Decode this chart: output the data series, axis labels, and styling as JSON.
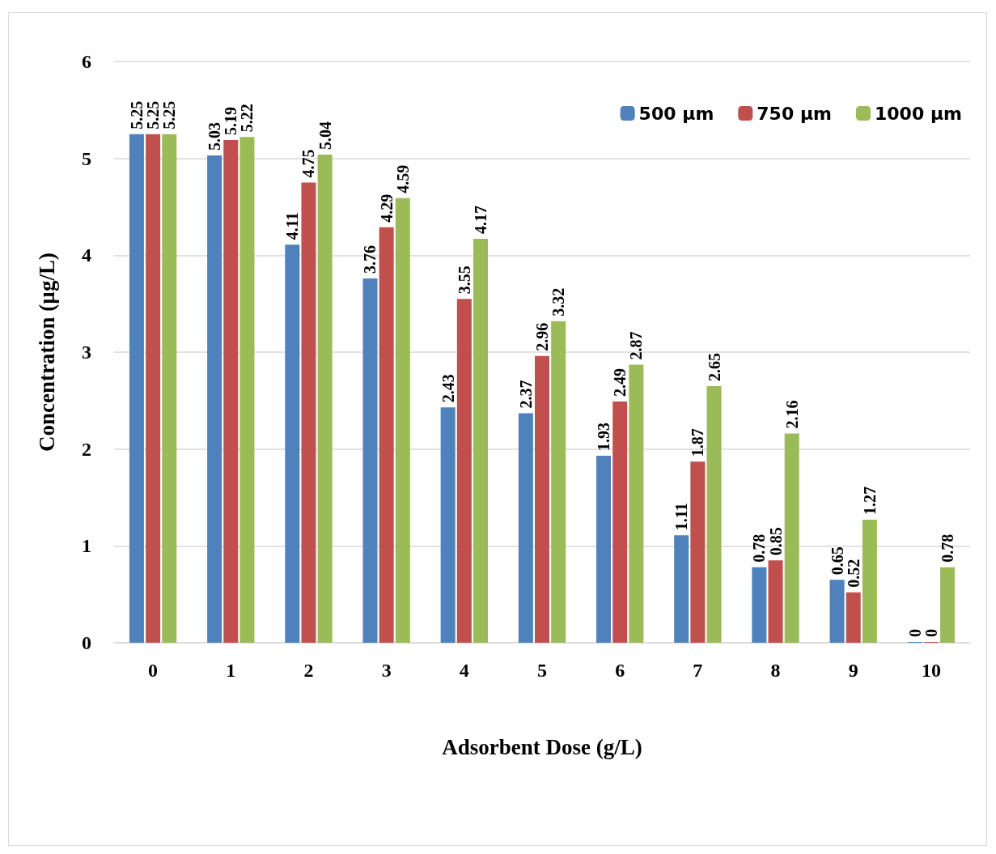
{
  "chart_data": {
    "type": "bar",
    "xlabel": "Adsorbent Dose (g/L)",
    "ylabel": "Concentration (µg/L)",
    "categories": [
      "0",
      "1",
      "2",
      "3",
      "4",
      "5",
      "6",
      "7",
      "8",
      "9",
      "10"
    ],
    "series": [
      {
        "name": "500 µm",
        "color": "#4f81bd",
        "values": [
          5.25,
          5.03,
          4.11,
          3.76,
          2.43,
          2.37,
          1.93,
          1.11,
          0.78,
          0.65,
          0
        ]
      },
      {
        "name": "750 µm",
        "color": "#c0504d",
        "values": [
          5.25,
          5.19,
          4.75,
          4.29,
          3.55,
          2.96,
          2.49,
          1.87,
          0.85,
          0.52,
          0
        ]
      },
      {
        "name": "1000 µm",
        "color": "#9bbb59",
        "values": [
          5.25,
          5.22,
          5.04,
          4.59,
          4.17,
          3.32,
          2.87,
          2.65,
          2.16,
          1.27,
          0.78
        ]
      }
    ],
    "ylim": [
      0,
      6
    ],
    "yticks": [
      0,
      1,
      2,
      3,
      4,
      5,
      6
    ],
    "grid": "y",
    "legend": "top right",
    "data_labels": true
  }
}
